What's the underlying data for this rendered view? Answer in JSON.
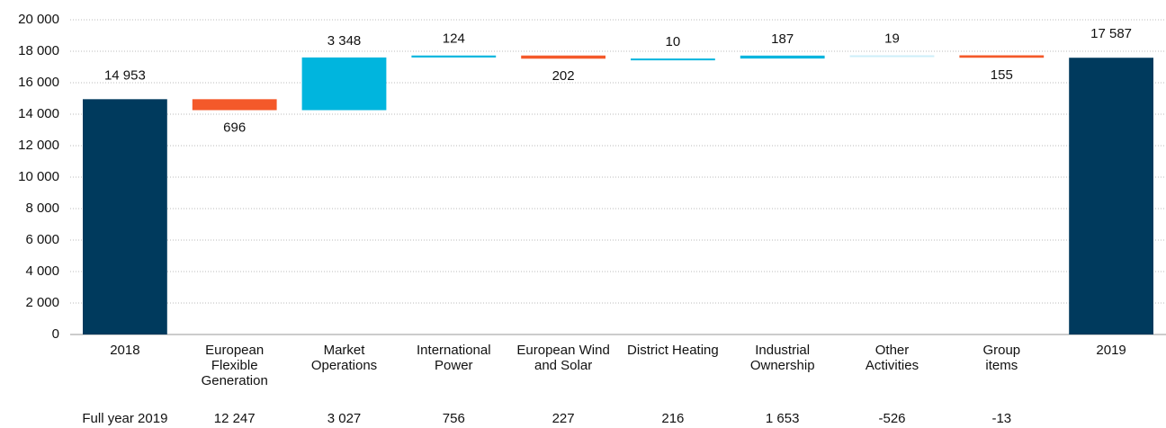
{
  "chart_data": {
    "type": "waterfall",
    "categories": [
      "2018",
      "European\nFlexible\nGeneration",
      "Market\nOperations",
      "International\nPower",
      "European Wind\nand Solar",
      "District Heating",
      "Industrial\nOwnership",
      "Other\nActivities",
      "Group\nitems",
      "2019"
    ],
    "measures": [
      "total",
      "relative",
      "relative",
      "relative",
      "relative",
      "relative",
      "relative",
      "relative",
      "relative",
      "total"
    ],
    "values": [
      14953,
      -696,
      3348,
      124,
      -202,
      10,
      187,
      19,
      -155,
      17587
    ],
    "value_labels": [
      "14 953",
      "696",
      "3 348",
      "124",
      "202",
      "10",
      "187",
      "19",
      "155",
      "17 587"
    ],
    "colors": [
      "#003a5d",
      "#f4592a",
      "#00b5de",
      "#00b5de",
      "#f4592a",
      "#00b5de",
      "#00b5de",
      "#cdeefa",
      "#f4592a",
      "#003a5d"
    ],
    "ylim": [
      0,
      20000
    ],
    "yticks": [
      0,
      {
        "value": 2000,
        "label": "2 000"
      },
      {
        "value": 4000,
        "label": "4 000"
      },
      {
        "value": 6000,
        "label": "6 000"
      },
      {
        "value": 8000,
        "label": "8 000"
      },
      {
        "value": 10000,
        "label": "10 000"
      },
      {
        "value": 12000,
        "label": "12 000"
      },
      {
        "value": 14000,
        "label": "14 000"
      },
      {
        "value": 16000,
        "label": "16 000"
      },
      {
        "value": 18000,
        "label": "18 000"
      },
      {
        "value": 20000,
        "label": "20 000"
      }
    ],
    "grid": true,
    "full_year": {
      "label": "Full year 2019",
      "values": [
        "12 247",
        "3 027",
        "756",
        "227",
        "216",
        "1 653",
        "-526",
        "-13"
      ]
    }
  }
}
